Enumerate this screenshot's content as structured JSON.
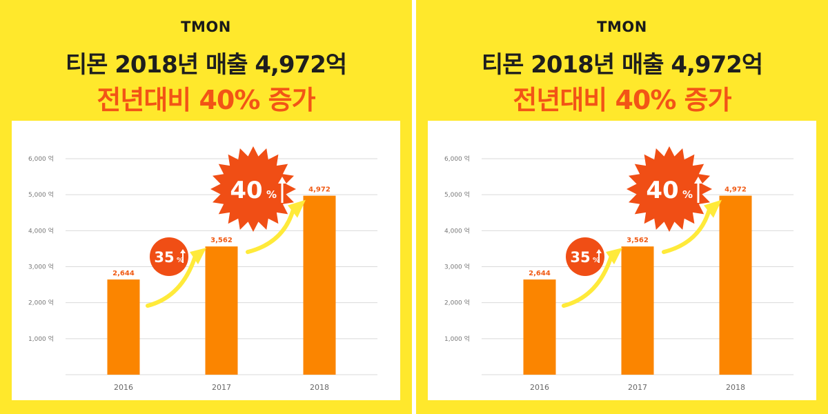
{
  "panels": [
    {
      "logo": "TMON",
      "headline_1": "티몬 2018년 매출 4,972억",
      "headline_2": "전년대비 40% 증가"
    },
    {
      "logo": "TMON",
      "headline_1": "티몬 2018년 매출 4,972억",
      "headline_2": "전년대비 40% 증가"
    }
  ],
  "colors": {
    "background": "#FFE82C",
    "bar": "#FB8500",
    "accent": "#F25416",
    "burst": "#F04E15",
    "arrow": "#FFEA3A",
    "grid": "#D9D9D9"
  },
  "chart_data": {
    "type": "bar",
    "title": "티몬 2018년 매출 4,972억",
    "subtitle": "전년대비 40% 증가",
    "categories": [
      "2016",
      "2017",
      "2018"
    ],
    "values": [
      2644,
      3562,
      4972
    ],
    "value_labels": [
      "2,644",
      "3,562",
      "4,972"
    ],
    "ylim": [
      0,
      6000
    ],
    "yticks": [
      1000,
      2000,
      3000,
      4000,
      5000,
      6000
    ],
    "ytick_labels": [
      "1,000 억",
      "2,000 억",
      "3,000 억",
      "4,000 억",
      "5,000 억",
      "6,000 억"
    ],
    "grid": true,
    "annotations": [
      {
        "value": "35",
        "unit": "%",
        "from": "2016",
        "to": "2017"
      },
      {
        "value": "40",
        "unit": "%",
        "from": "2017",
        "to": "2018"
      }
    ]
  }
}
